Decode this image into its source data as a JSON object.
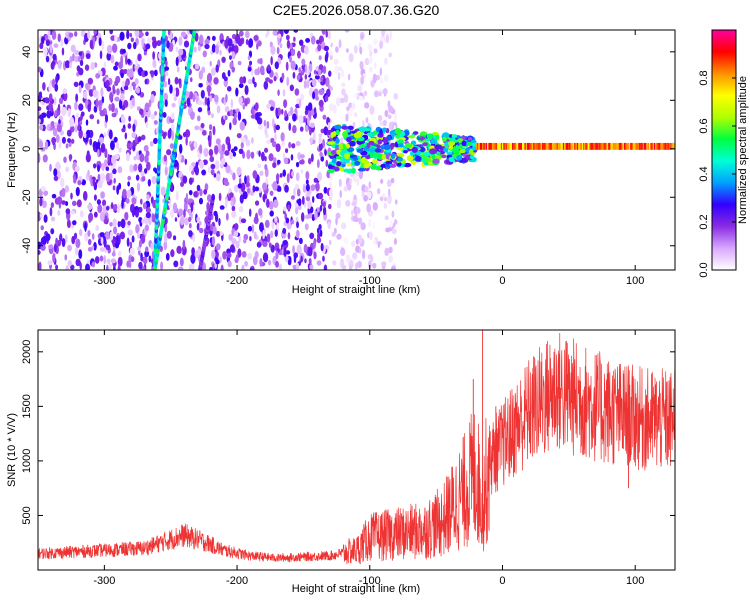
{
  "title": "C2E5.2026.058.07.36.G20",
  "chart_data": [
    {
      "type": "heatmap",
      "name": "spectrogram",
      "xlabel": "Height of straight line (km)",
      "ylabel": "Frequency (Hz)",
      "xlim": [
        -350,
        130
      ],
      "ylim": [
        -50,
        49
      ],
      "xticks": [
        -300,
        -200,
        -100,
        0,
        100
      ],
      "yticks": [
        -40,
        -20,
        0,
        20,
        40
      ],
      "colorbar": {
        "label": "Normalized spectral amplitude",
        "range": [
          0,
          1
        ],
        "ticks": [
          "0.0",
          "0.2",
          "0.4",
          "0.6",
          "0.8"
        ],
        "colormap": [
          "#ffffff",
          "#d8a8ff",
          "#8a2be2",
          "#3200ff",
          "#00a0ff",
          "#00ffd8",
          "#00ff40",
          "#b0ff00",
          "#ffff00",
          "#ff9000",
          "#ff0000",
          "#ff00a0"
        ]
      },
      "features": [
        {
          "kind": "noise",
          "x": [
            -350,
            -130
          ],
          "freq": [
            -50,
            49
          ],
          "amplitude": 0.15
        },
        {
          "kind": "sparse-noise",
          "x": [
            -130,
            -80
          ],
          "freq": [
            -50,
            49
          ],
          "amplitude": 0.05
        },
        {
          "kind": "streak",
          "x": [
            -262,
            -255
          ],
          "freq": [
            -50,
            49
          ],
          "amplitude": 0.4
        },
        {
          "kind": "streak",
          "x": [
            -262,
            -232
          ],
          "freq": [
            -50,
            49
          ],
          "amplitude": 0.45
        },
        {
          "kind": "streak",
          "x": [
            -228,
            -218
          ],
          "freq": [
            -50,
            -20
          ],
          "amplitude": 0.2
        },
        {
          "kind": "carrier-blob",
          "x": [
            -130,
            -20
          ],
          "freq": [
            -10,
            10
          ],
          "amplitude": 0.5
        },
        {
          "kind": "carrier-line",
          "x": [
            -20,
            130
          ],
          "freq": [
            0,
            2
          ],
          "amplitude": 0.95
        }
      ]
    },
    {
      "type": "line",
      "name": "snr",
      "xlabel": "Height of straight line (km)",
      "ylabel": "SNR (10 * V/V)",
      "xlim": [
        -350,
        130
      ],
      "ylim": [
        0,
        2200
      ],
      "xticks": [
        -300,
        -200,
        -100,
        0,
        100
      ],
      "yticks": [
        500,
        1000,
        1500,
        2000
      ],
      "color": "#ee3333",
      "series": [
        {
          "name": "SNR",
          "x": [
            -350,
            -300,
            -270,
            -255,
            -240,
            -225,
            -210,
            -190,
            -170,
            -150,
            -130,
            -110,
            -100,
            -80,
            -60,
            -45,
            -30,
            -20,
            -15,
            -10,
            0,
            10,
            20,
            30,
            40,
            50,
            60,
            75,
            90,
            105,
            120,
            130
          ],
          "y": [
            150,
            180,
            200,
            260,
            320,
            260,
            180,
            130,
            110,
            120,
            130,
            180,
            300,
            330,
            360,
            450,
            700,
            900,
            600,
            1000,
            1150,
            1300,
            1450,
            1550,
            1650,
            1600,
            1550,
            1480,
            1420,
            1380,
            1370,
            1360
          ]
        }
      ]
    }
  ]
}
